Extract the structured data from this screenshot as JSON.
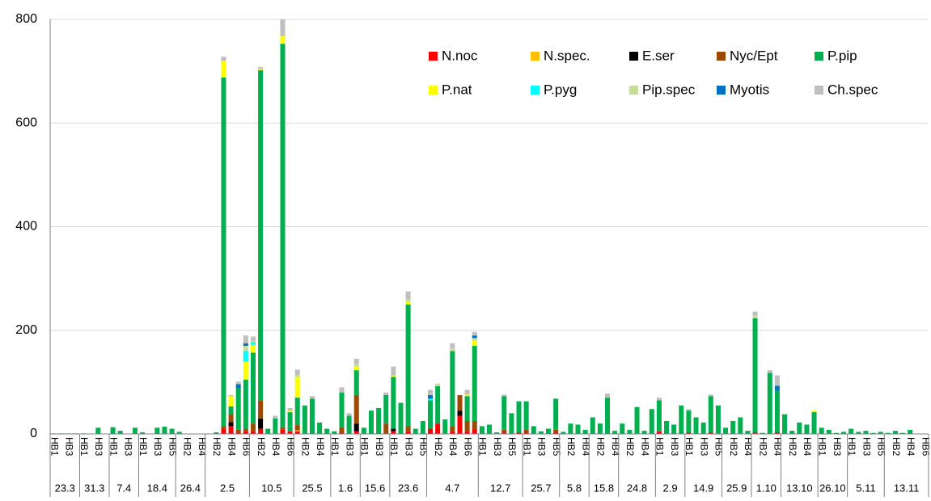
{
  "chart_data": {
    "type": "stacked_bar",
    "categories": [
      "HB1",
      null,
      "HB3",
      null,
      "HB1",
      null,
      "HB3",
      null,
      "HB1",
      null,
      "HB3",
      null,
      "HB1",
      null,
      "HB3",
      null,
      "HB5",
      null,
      "HB2",
      null,
      "HB4",
      null,
      "HB2",
      null,
      "HB4",
      null,
      "HB6",
      null,
      "HB2",
      null,
      "HB4",
      null,
      "HB6",
      null,
      "HB2",
      null,
      "HB4",
      null,
      "HB1",
      null,
      "HB3",
      null,
      "HB1",
      null,
      "HB3",
      null,
      "HB1",
      null,
      "HB3",
      null,
      "HB5",
      null,
      "HB2",
      null,
      "HB4",
      null,
      "HB6",
      null,
      "HB1",
      null,
      "HB3",
      null,
      "HB5",
      null,
      "HB1",
      null,
      "HB3",
      null,
      "HB5",
      null,
      "HB2",
      null,
      "HB4",
      null,
      "HB2",
      null,
      "HB4",
      null,
      "HB2",
      null,
      "HB4",
      null,
      "HB1",
      null,
      "HB3",
      null,
      "HB1",
      null,
      "HB3",
      null,
      "HB5",
      null,
      "HB2",
      null,
      "HB4",
      null,
      "HB2",
      null,
      "HB4",
      null,
      "HB2",
      null,
      "HB4",
      null,
      "HB1",
      null,
      "HB3",
      null,
      "HB1",
      null,
      "HB3",
      null,
      "HB5",
      null,
      "HB2",
      null,
      "HB4",
      null,
      "HB6"
    ],
    "groups": [
      {
        "label": "23.3",
        "size": 4
      },
      {
        "label": "31.3",
        "size": 4
      },
      {
        "label": "7.4",
        "size": 4
      },
      {
        "label": "18.4",
        "size": 5
      },
      {
        "label": "26.4",
        "size": 4
      },
      {
        "label": "2.5",
        "size": 6
      },
      {
        "label": "10.5",
        "size": 6
      },
      {
        "label": "25.5",
        "size": 5
      },
      {
        "label": "1.6",
        "size": 4
      },
      {
        "label": "15.6",
        "size": 4
      },
      {
        "label": "23.6",
        "size": 5
      },
      {
        "label": "4.7",
        "size": 7
      },
      {
        "label": "12.7",
        "size": 6
      },
      {
        "label": "25.7",
        "size": 5
      },
      {
        "label": "5.8",
        "size": 4
      },
      {
        "label": "15.8",
        "size": 4
      },
      {
        "label": "24.8",
        "size": 5
      },
      {
        "label": "2.9",
        "size": 4
      },
      {
        "label": "14.9",
        "size": 5
      },
      {
        "label": "25.9",
        "size": 4
      },
      {
        "label": "1.10",
        "size": 4
      },
      {
        "label": "13.10",
        "size": 5
      },
      {
        "label": "26.10",
        "size": 4
      },
      {
        "label": "5.11",
        "size": 5
      },
      {
        "label": "13.11",
        "size": 6
      }
    ],
    "series": [
      {
        "name": "N.noc",
        "color": "#ff0000",
        "values": [
          0,
          0,
          0,
          0,
          0,
          0,
          0,
          0,
          0,
          0,
          0,
          0,
          0,
          0,
          0,
          0,
          0,
          0,
          0,
          0,
          0,
          0,
          0,
          10,
          15,
          3,
          5,
          5,
          10,
          0,
          0,
          8,
          5,
          5,
          0,
          0,
          0,
          0,
          0,
          3,
          0,
          5,
          0,
          0,
          0,
          0,
          5,
          0,
          5,
          0,
          0,
          10,
          20,
          0,
          5,
          35,
          5,
          10,
          0,
          0,
          0,
          3,
          0,
          3,
          3,
          0,
          0,
          0,
          3,
          0,
          0,
          0,
          0,
          0,
          0,
          0,
          0,
          0,
          0,
          0,
          0,
          0,
          5,
          0,
          0,
          0,
          3,
          0,
          0,
          3,
          0,
          0,
          0,
          0,
          0,
          3,
          0,
          0,
          3,
          0,
          0,
          0,
          0,
          0,
          0,
          0,
          0,
          0,
          0,
          0,
          0,
          0,
          0,
          0,
          0,
          0,
          0,
          0,
          0
        ]
      },
      {
        "name": "N.spec.",
        "color": "#ffc000",
        "values": [
          0,
          0,
          0,
          0,
          0,
          0,
          0,
          0,
          0,
          0,
          0,
          0,
          0,
          0,
          0,
          0,
          0,
          0,
          0,
          0,
          0,
          0,
          0,
          0,
          0,
          0,
          0,
          0,
          0,
          0,
          0,
          0,
          0,
          2,
          0,
          0,
          0,
          0,
          0,
          0,
          0,
          0,
          0,
          0,
          0,
          0,
          0,
          0,
          0,
          0,
          0,
          0,
          0,
          0,
          0,
          0,
          0,
          0,
          0,
          0,
          0,
          0,
          0,
          0,
          0,
          0,
          0,
          0,
          0,
          0,
          0,
          0,
          0,
          0,
          0,
          0,
          0,
          0,
          0,
          0,
          0,
          0,
          0,
          0,
          0,
          0,
          0,
          0,
          0,
          0,
          0,
          0,
          0,
          0,
          0,
          0,
          0,
          0,
          0,
          0,
          0,
          0,
          0,
          0,
          0,
          0,
          0,
          0,
          0,
          0,
          0,
          0,
          0,
          0,
          0,
          0,
          0,
          0,
          0
        ]
      },
      {
        "name": "E.ser",
        "color": "#000000",
        "values": [
          0,
          0,
          0,
          0,
          0,
          0,
          0,
          0,
          0,
          0,
          0,
          0,
          0,
          0,
          0,
          0,
          0,
          0,
          0,
          0,
          0,
          0,
          0,
          0,
          8,
          0,
          0,
          0,
          20,
          0,
          0,
          0,
          0,
          0,
          0,
          0,
          0,
          0,
          0,
          0,
          0,
          15,
          0,
          0,
          0,
          0,
          5,
          0,
          0,
          0,
          0,
          0,
          0,
          0,
          0,
          10,
          0,
          0,
          0,
          0,
          0,
          0,
          0,
          0,
          0,
          0,
          0,
          0,
          0,
          0,
          0,
          0,
          0,
          0,
          0,
          0,
          0,
          0,
          0,
          0,
          0,
          0,
          0,
          0,
          0,
          0,
          0,
          0,
          0,
          0,
          0,
          0,
          0,
          0,
          0,
          0,
          0,
          0,
          0,
          0,
          0,
          0,
          0,
          0,
          0,
          0,
          0,
          0,
          0,
          0,
          0,
          0,
          0,
          0,
          0,
          0,
          0,
          0,
          0
        ]
      },
      {
        "name": "Nyc/Ept",
        "color": "#9c4a00",
        "values": [
          0,
          0,
          0,
          0,
          0,
          0,
          0,
          0,
          0,
          0,
          0,
          0,
          0,
          0,
          0,
          0,
          0,
          0,
          0,
          0,
          0,
          0,
          0,
          5,
          15,
          5,
          5,
          15,
          35,
          0,
          0,
          5,
          0,
          10,
          0,
          0,
          0,
          0,
          0,
          10,
          0,
          55,
          0,
          0,
          0,
          20,
          0,
          0,
          10,
          0,
          0,
          0,
          0,
          0,
          10,
          30,
          20,
          15,
          0,
          0,
          0,
          5,
          0,
          0,
          5,
          0,
          0,
          0,
          5,
          0,
          0,
          0,
          0,
          0,
          0,
          0,
          0,
          0,
          0,
          0,
          0,
          0,
          0,
          0,
          0,
          0,
          0,
          0,
          0,
          0,
          0,
          0,
          0,
          0,
          0,
          0,
          0,
          0,
          0,
          0,
          0,
          0,
          0,
          0,
          0,
          0,
          0,
          0,
          0,
          0,
          0,
          0,
          0,
          0,
          0,
          0,
          0,
          0,
          0
        ]
      },
      {
        "name": "P.pip",
        "color": "#00b050",
        "values": [
          1,
          1,
          1,
          1,
          1,
          0,
          12,
          0,
          13,
          6,
          0,
          12,
          3,
          0,
          12,
          14,
          10,
          4,
          0,
          0,
          0,
          0,
          3,
          673,
          15,
          80,
          95,
          137,
          637,
          10,
          30,
          740,
          37,
          53,
          55,
          68,
          22,
          10,
          5,
          67,
          35,
          48,
          12,
          45,
          50,
          55,
          100,
          60,
          235,
          10,
          25,
          55,
          72,
          28,
          145,
          0,
          48,
          145,
          15,
          18,
          3,
          65,
          40,
          60,
          55,
          15,
          5,
          10,
          60,
          4,
          20,
          18,
          8,
          32,
          20,
          70,
          6,
          20,
          8,
          52,
          6,
          48,
          60,
          25,
          18,
          55,
          42,
          32,
          22,
          70,
          55,
          12,
          25,
          32,
          6,
          220,
          2,
          118,
          80,
          38,
          6,
          22,
          18,
          42,
          12,
          8,
          2,
          4,
          10,
          4,
          6,
          2,
          4,
          2,
          6,
          2,
          8,
          0,
          0
        ]
      },
      {
        "name": "P.nat",
        "color": "#ffff00",
        "values": [
          0,
          0,
          0,
          0,
          0,
          0,
          0,
          0,
          0,
          0,
          0,
          0,
          0,
          0,
          0,
          0,
          0,
          0,
          0,
          0,
          0,
          0,
          0,
          32,
          20,
          0,
          35,
          15,
          3,
          0,
          0,
          15,
          3,
          40,
          0,
          0,
          0,
          0,
          0,
          0,
          0,
          7,
          0,
          0,
          0,
          0,
          3,
          0,
          5,
          0,
          0,
          0,
          0,
          0,
          0,
          0,
          3,
          10,
          0,
          0,
          0,
          0,
          0,
          0,
          0,
          0,
          0,
          0,
          0,
          0,
          0,
          0,
          0,
          0,
          0,
          0,
          0,
          0,
          0,
          0,
          0,
          0,
          0,
          0,
          0,
          0,
          0,
          0,
          0,
          0,
          0,
          0,
          0,
          0,
          0,
          0,
          0,
          0,
          0,
          0,
          0,
          0,
          0,
          3,
          0,
          0,
          0,
          0,
          0,
          0,
          0,
          0,
          0,
          0,
          0,
          0,
          0,
          0,
          0
        ]
      },
      {
        "name": "P.pyg",
        "color": "#00ffff",
        "values": [
          0,
          0,
          0,
          0,
          0,
          0,
          0,
          0,
          0,
          0,
          0,
          0,
          0,
          0,
          0,
          0,
          0,
          0,
          0,
          0,
          0,
          0,
          0,
          0,
          0,
          0,
          20,
          5,
          0,
          0,
          0,
          0,
          0,
          0,
          0,
          0,
          0,
          0,
          0,
          0,
          0,
          0,
          0,
          0,
          0,
          0,
          0,
          0,
          0,
          0,
          0,
          3,
          0,
          0,
          0,
          0,
          0,
          0,
          0,
          0,
          0,
          0,
          0,
          0,
          0,
          0,
          0,
          0,
          0,
          0,
          0,
          0,
          0,
          0,
          0,
          0,
          0,
          0,
          0,
          0,
          0,
          0,
          0,
          0,
          0,
          0,
          0,
          0,
          0,
          0,
          0,
          0,
          0,
          0,
          0,
          0,
          0,
          0,
          0,
          0,
          0,
          0,
          0,
          0,
          0,
          0,
          0,
          0,
          0,
          0,
          0,
          0,
          0,
          0,
          0,
          0,
          0,
          0,
          0
        ]
      },
      {
        "name": "Pip.spec",
        "color": "#c4dd9b",
        "values": [
          0,
          0,
          0,
          0,
          0,
          0,
          0,
          0,
          0,
          0,
          0,
          0,
          0,
          0,
          0,
          0,
          0,
          0,
          0,
          0,
          0,
          0,
          0,
          0,
          0,
          0,
          10,
          3,
          0,
          0,
          0,
          0,
          0,
          4,
          0,
          0,
          0,
          0,
          0,
          0,
          0,
          5,
          0,
          0,
          0,
          0,
          0,
          0,
          5,
          0,
          0,
          0,
          5,
          0,
          5,
          0,
          0,
          5,
          0,
          0,
          0,
          0,
          0,
          0,
          0,
          0,
          0,
          0,
          0,
          0,
          0,
          0,
          0,
          0,
          0,
          0,
          0,
          0,
          0,
          0,
          0,
          0,
          0,
          0,
          0,
          0,
          0,
          0,
          0,
          0,
          0,
          0,
          0,
          0,
          0,
          5,
          0,
          0,
          0,
          0,
          0,
          0,
          0,
          0,
          0,
          0,
          0,
          0,
          0,
          0,
          0,
          0,
          0,
          0,
          0,
          0,
          0,
          0,
          0
        ]
      },
      {
        "name": "Myotis",
        "color": "#0070c0",
        "values": [
          0,
          0,
          0,
          0,
          0,
          0,
          0,
          0,
          0,
          0,
          0,
          0,
          0,
          0,
          0,
          0,
          0,
          0,
          0,
          0,
          0,
          0,
          0,
          0,
          0,
          8,
          5,
          0,
          0,
          0,
          0,
          0,
          0,
          0,
          0,
          0,
          0,
          0,
          0,
          0,
          0,
          0,
          0,
          0,
          0,
          0,
          0,
          0,
          0,
          0,
          0,
          7,
          0,
          0,
          0,
          0,
          0,
          5,
          0,
          0,
          0,
          0,
          0,
          0,
          0,
          0,
          0,
          0,
          0,
          0,
          0,
          0,
          0,
          0,
          0,
          0,
          0,
          0,
          0,
          0,
          0,
          0,
          0,
          0,
          0,
          0,
          0,
          0,
          0,
          0,
          0,
          0,
          0,
          0,
          0,
          0,
          0,
          0,
          10,
          0,
          0,
          0,
          0,
          0,
          0,
          0,
          0,
          0,
          0,
          0,
          0,
          0,
          0,
          0,
          0,
          0,
          0,
          0,
          0
        ]
      },
      {
        "name": "Ch.spec",
        "color": "#bfbfbf",
        "values": [
          0,
          0,
          0,
          0,
          0,
          0,
          0,
          0,
          0,
          0,
          0,
          0,
          0,
          0,
          0,
          0,
          0,
          0,
          0,
          0,
          0,
          0,
          0,
          8,
          2,
          5,
          15,
          8,
          3,
          0,
          5,
          32,
          5,
          10,
          0,
          5,
          0,
          0,
          0,
          10,
          5,
          10,
          0,
          0,
          0,
          5,
          17,
          0,
          15,
          0,
          0,
          10,
          0,
          0,
          10,
          0,
          9,
          7,
          0,
          0,
          0,
          3,
          0,
          0,
          0,
          0,
          0,
          0,
          0,
          0,
          0,
          0,
          0,
          0,
          0,
          8,
          0,
          0,
          0,
          0,
          0,
          0,
          5,
          0,
          0,
          0,
          3,
          0,
          0,
          3,
          0,
          0,
          0,
          0,
          0,
          8,
          0,
          5,
          20,
          0,
          0,
          0,
          0,
          0,
          0,
          0,
          0,
          0,
          0,
          0,
          0,
          0,
          0,
          0,
          0,
          0,
          0,
          0,
          0
        ]
      }
    ],
    "ylim": [
      0,
      800
    ],
    "yticks": [
      0,
      200,
      400,
      600,
      800
    ],
    "grid": true,
    "legend": "top-right"
  }
}
